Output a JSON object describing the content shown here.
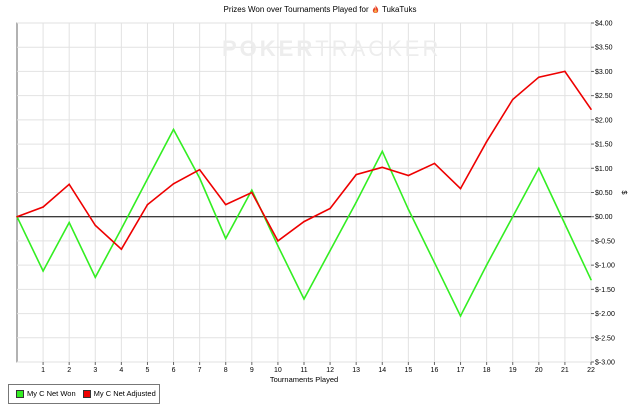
{
  "watermark": {
    "part1": "POKER",
    "part2": "TRACKER"
  },
  "colors": {
    "green": "#33ee22",
    "red": "#ee0000",
    "zero_line": "#000000",
    "grid": "#dddddd",
    "flame": "#e8452a"
  },
  "chart_data": {
    "type": "line",
    "title_prefix": "Prizes Won over Tournaments Played for",
    "title_player": "TukaTuks",
    "title_icon": "flame-icon",
    "xlabel": "Tournaments Played",
    "ylabel": "$",
    "xlim": [
      0,
      22
    ],
    "ylim": [
      -3.0,
      4.0
    ],
    "x_ticks": [
      1,
      2,
      3,
      4,
      5,
      6,
      7,
      8,
      9,
      10,
      11,
      12,
      13,
      14,
      15,
      16,
      17,
      18,
      19,
      20,
      21,
      22
    ],
    "y_ticks": [
      -3.0,
      -2.5,
      -2.0,
      -1.5,
      -1.0,
      -0.5,
      0.0,
      0.5,
      1.0,
      1.5,
      2.0,
      2.5,
      3.0,
      3.5,
      4.0
    ],
    "y_tick_labels": [
      "$-3.00",
      "$-2.50",
      "$-2.00",
      "$-1.50",
      "$-1.00",
      "$-0.50",
      "$0.00",
      "$0.50",
      "$1.00",
      "$1.50",
      "$2.00",
      "$2.50",
      "$3.00",
      "$3.50",
      "$4.00"
    ],
    "grid": "vertical and horizontal, light",
    "legend_position": "bottom-left",
    "series": [
      {
        "name": "My C Net Won",
        "color": "#33ee22",
        "x": [
          0,
          1,
          2,
          3,
          4,
          5,
          6,
          7,
          8,
          9,
          10,
          11,
          12,
          13,
          14,
          15,
          16,
          17,
          18,
          19,
          20,
          21,
          22
        ],
        "values": [
          0.0,
          -1.12,
          -0.12,
          -1.25,
          -0.25,
          0.78,
          1.8,
          0.8,
          -0.45,
          0.55,
          -0.6,
          -1.7,
          -0.7,
          0.3,
          1.35,
          0.15,
          -0.95,
          -2.05,
          -1.0,
          0.0,
          1.0,
          -0.15,
          -1.3
        ]
      },
      {
        "name": "My C Net Adjusted",
        "color": "#ee0000",
        "x": [
          0,
          1,
          2,
          3,
          4,
          5,
          6,
          7,
          8,
          9,
          10,
          11,
          12,
          13,
          14,
          15,
          16,
          17,
          18,
          19,
          20,
          21,
          22
        ],
        "values": [
          0.0,
          0.2,
          0.67,
          -0.18,
          -0.67,
          0.25,
          0.68,
          0.97,
          0.25,
          0.5,
          -0.5,
          -0.1,
          0.17,
          0.87,
          1.02,
          0.85,
          1.1,
          0.58,
          1.55,
          2.42,
          2.88,
          3.0,
          2.22
        ]
      }
    ]
  }
}
